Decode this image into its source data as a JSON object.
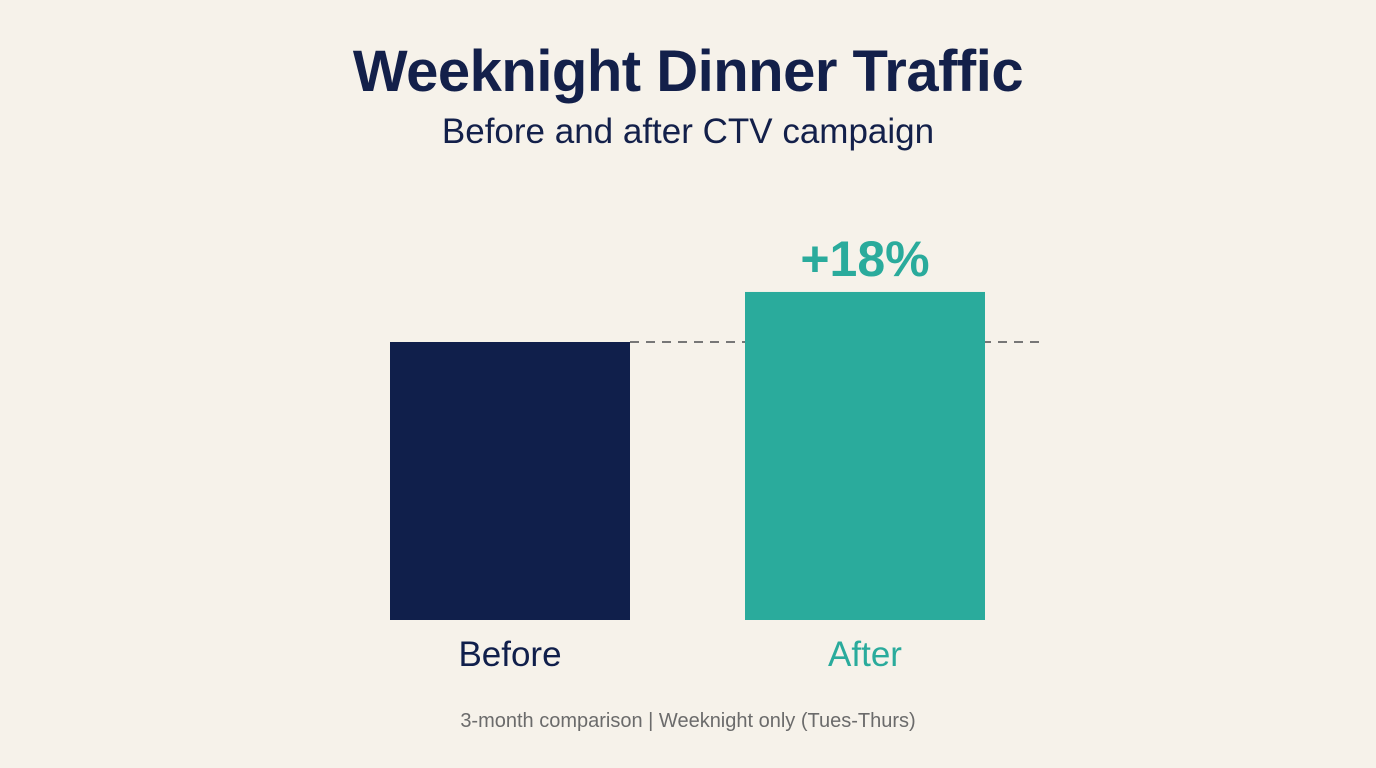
{
  "chart_data": {
    "type": "bar",
    "title": "Weeknight Dinner Traffic",
    "subtitle": "Before and after CTV campaign",
    "categories": [
      "Before",
      "After"
    ],
    "values": [
      100,
      118
    ],
    "colors": [
      "#101f4b",
      "#2aab9c"
    ],
    "baseline_reference": 100,
    "annotation": "+18%",
    "footnote": "3-month comparison | Weeknight only (Tues-Thurs)",
    "ylim": [
      0,
      130
    ],
    "grid": false,
    "legend": "none"
  }
}
